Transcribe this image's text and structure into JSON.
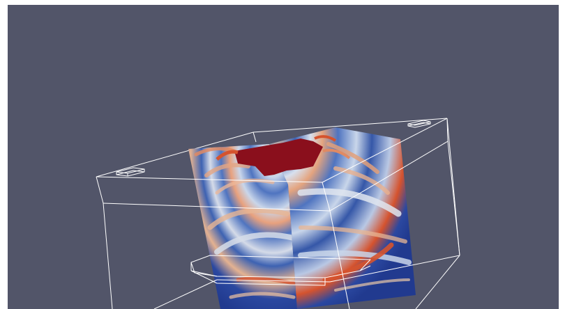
{
  "app": {
    "name": "3D render view"
  },
  "render_view": {
    "background_color": "#525569",
    "outline_color": "#ffffff",
    "scalar_colormap": [
      "#213a8f",
      "#4f74c0",
      "#c9d6ea",
      "#e9c7a7",
      "#d5532e",
      "#8a0f1c"
    ],
    "objects": [
      "outline-box",
      "slice-plane-x",
      "slice-plane-y",
      "source-marker",
      "receiver-marker"
    ]
  }
}
